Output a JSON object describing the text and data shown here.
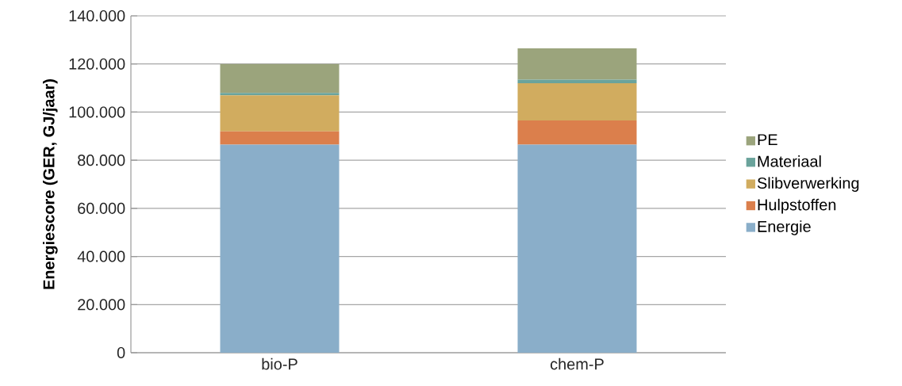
{
  "chart_data": {
    "type": "bar",
    "stacked": true,
    "ylabel": "Energiescore (GER, GJ/jaar)",
    "categories": [
      "bio-P",
      "chem-P"
    ],
    "series": [
      {
        "name": "Energie",
        "color": "#8aaec9",
        "values": [
          86500,
          86500
        ]
      },
      {
        "name": "Hulpstoffen",
        "color": "#db7f4c",
        "values": [
          5500,
          10000
        ]
      },
      {
        "name": "Slibverwerking",
        "color": "#d1ac5f",
        "values": [
          15000,
          15500
        ]
      },
      {
        "name": "Materiaal",
        "color": "#6aa39b",
        "values": [
          1000,
          1500
        ]
      },
      {
        "name": "PE",
        "color": "#9ba47c",
        "values": [
          12000,
          13000
        ]
      }
    ],
    "ylim": [
      0,
      140000
    ],
    "yticks": [
      {
        "value": 0,
        "label": "0"
      },
      {
        "value": 20000,
        "label": "20.000"
      },
      {
        "value": 40000,
        "label": "40.000"
      },
      {
        "value": 60000,
        "label": "60.000"
      },
      {
        "value": 80000,
        "label": "80.000"
      },
      {
        "value": 100000,
        "label": "100.000"
      },
      {
        "value": 120000,
        "label": "120.000"
      },
      {
        "value": 140000,
        "label": "140.000"
      }
    ],
    "grid": "y",
    "legend": "right"
  }
}
